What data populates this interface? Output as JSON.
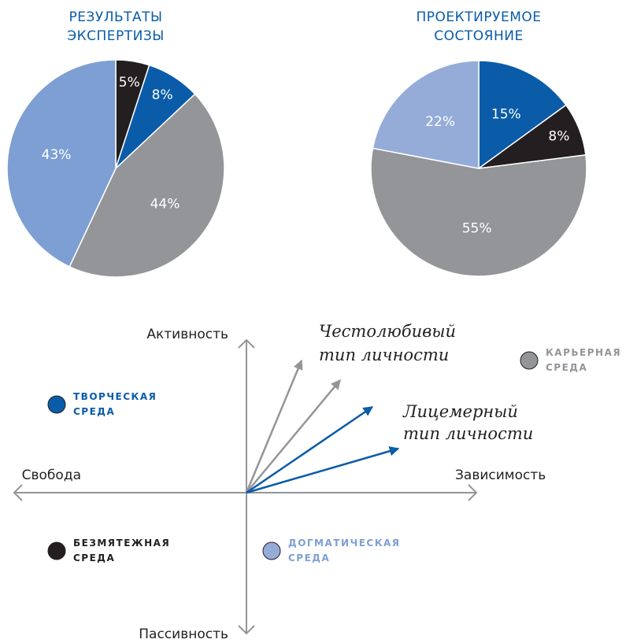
{
  "chart_data": [
    {
      "type": "pie",
      "title": "РЕЗУЛЬТАТЫ ЭКСПЕРТИЗЫ",
      "values": [
        5,
        8,
        44,
        43
      ],
      "value_labels": [
        "5%",
        "8%",
        "44%",
        "43%"
      ],
      "colors": [
        "#231f20",
        "#0a5ca8",
        "#939598",
        "#7d9fd3"
      ]
    },
    {
      "type": "pie",
      "title": "ПРОЕКТИРУЕМОЕ СОСТОЯНИЕ",
      "values": [
        15,
        8,
        55,
        22
      ],
      "value_labels": [
        "15%",
        "8%",
        "55%",
        "22%"
      ],
      "colors": [
        "#0a5ca8",
        "#231f20",
        "#939598",
        "#95acd9"
      ]
    }
  ],
  "diagram": {
    "axes": {
      "top": "Активность",
      "bottom": "Пассивность",
      "left": "Свобода",
      "right": "Зависимость"
    },
    "arrow_labels": [
      [
        "Честолюбивый",
        "тип личности"
      ],
      [
        "Лицемерный",
        "тип личности"
      ]
    ],
    "zones": [
      {
        "label": [
          "КАРЬЕРНАЯ",
          "СРЕДА"
        ],
        "color": "#939598"
      },
      {
        "label": [
          "ТВОРЧЕСКАЯ",
          "СРЕДА"
        ],
        "color": "#0a5ca8"
      },
      {
        "label": [
          "БЕЗМЯТЕЖНАЯ",
          "СРЕДА"
        ],
        "color": "#231f20"
      },
      {
        "label": [
          "ДОГМАТИЧЕСКАЯ",
          "СРЕДА"
        ],
        "color": "#95acd9"
      }
    ]
  }
}
